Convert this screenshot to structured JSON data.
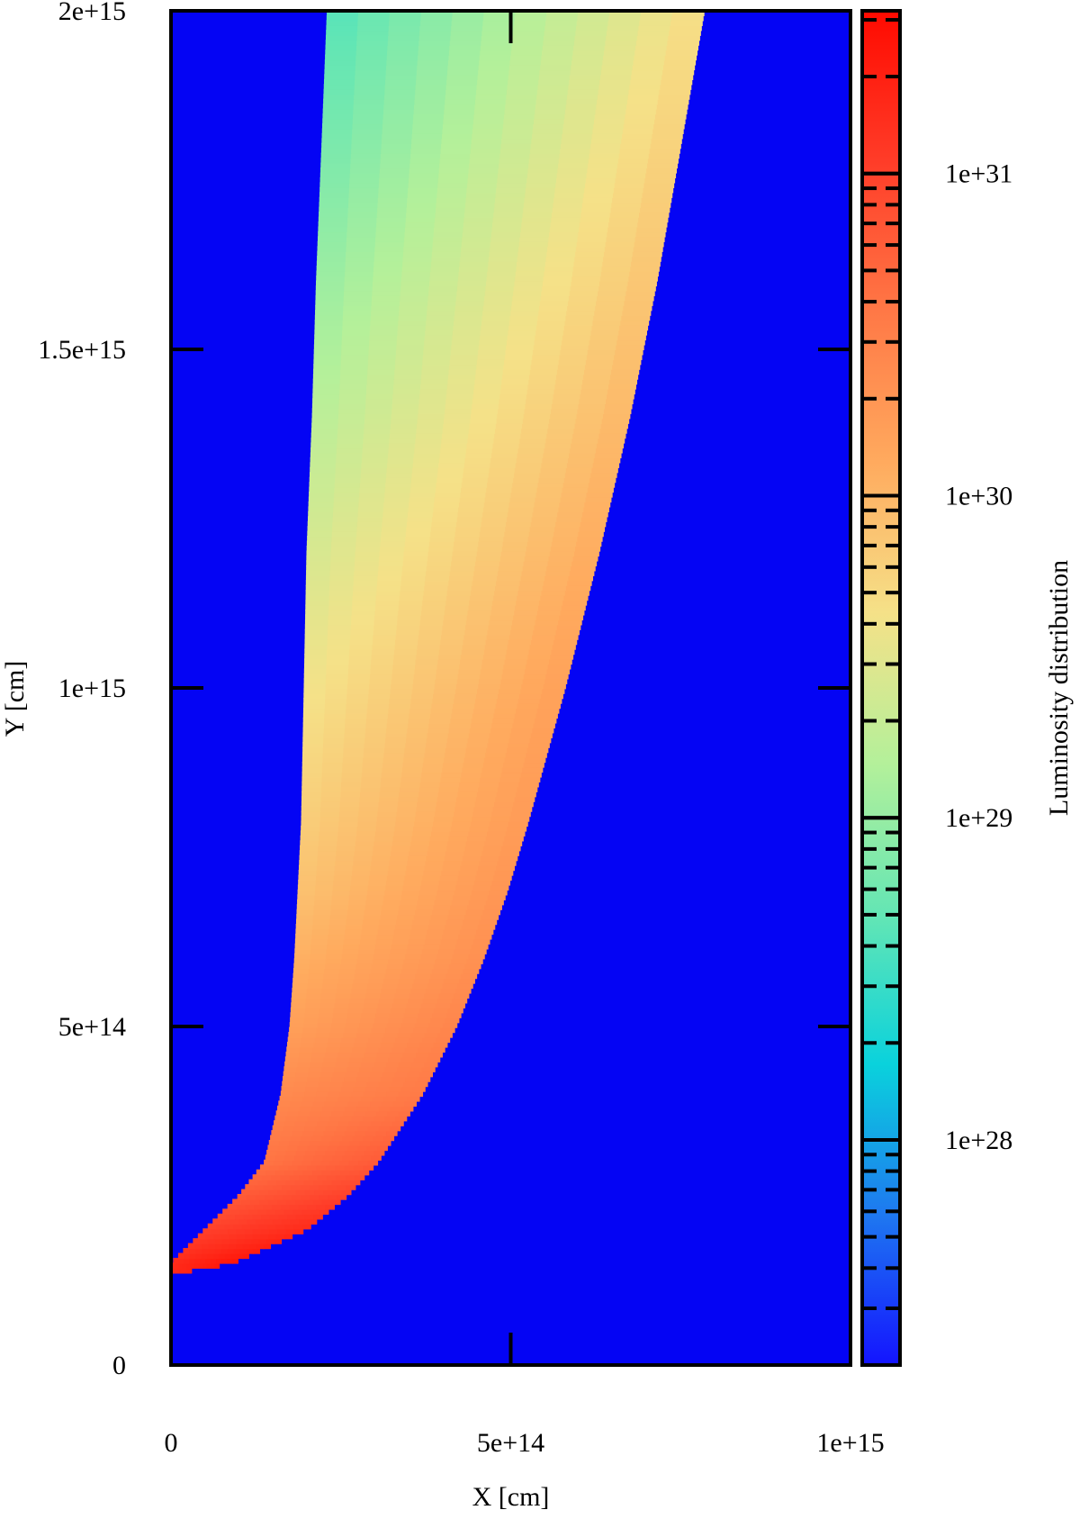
{
  "chart_data": {
    "type": "heatmap",
    "title": "",
    "xlabel": "X [cm]",
    "ylabel": "Y [cm]",
    "xlim": [
      0,
      1000000000000000.0
    ],
    "ylim": [
      0,
      2000000000000000.0
    ],
    "x_ticks": [
      0,
      500000000000000.0,
      1000000000000000.0
    ],
    "x_tick_labels": [
      "0",
      "5e+14",
      "1e+15"
    ],
    "y_ticks": [
      0,
      500000000000000.0,
      1000000000000000.0,
      1500000000000000.0,
      2000000000000000.0
    ],
    "y_tick_labels": [
      "0",
      "5e+14",
      "1e+15",
      "1.5e+15",
      "2e+15"
    ],
    "colorbar": {
      "label": "Luminosity distribution",
      "scale": "log",
      "range": [
        2e+27,
        3.2e+31
      ],
      "major_ticks": [
        1e+28,
        1e+29,
        1e+30,
        1e+31
      ],
      "major_tick_labels": [
        "1e+28",
        "1e+29",
        "1e+30",
        "1e+31"
      ],
      "colormap": [
        "#1414ff",
        "#1e78f0",
        "#0ad2dc",
        "#64e6b4",
        "#b4f09a",
        "#f5e188",
        "#ffaa5e",
        "#ff7846",
        "#ff3c28",
        "#ff0a00"
      ]
    },
    "background_color": "#0404f4",
    "region": {
      "description_points_y": [
        134000000000000.0,
        150000000000000.0,
        200000000000000.0,
        250000000000000.0,
        300000000000000.0,
        400000000000000.0,
        500000000000000.0,
        600000000000000.0,
        700000000000000.0,
        800000000000000.0,
        1000000000000000.0,
        1200000000000000.0,
        1400000000000000.0,
        1600000000000000.0,
        1800000000000000.0,
        2000000000000000.0
      ],
      "inner_edge_x": [
        0,
        0,
        50000000000000.0,
        100000000000000.0,
        138000000000000.0,
        162000000000000.0,
        175000000000000.0,
        182000000000000.0,
        187000000000000.0,
        192000000000000.0,
        196000000000000.0,
        200000000000000.0,
        208000000000000.0,
        214000000000000.0,
        222000000000000.0,
        230000000000000.0
      ],
      "outer_edge_x": [
        0,
        90000000000000.0,
        200000000000000.0,
        260000000000000.0,
        305000000000000.0,
        370000000000000.0,
        420000000000000.0,
        460000000000000.0,
        495000000000000.0,
        525000000000000.0,
        580000000000000.0,
        630000000000000.0,
        675000000000000.0,
        715000000000000.0,
        750000000000000.0,
        785000000000000.0
      ],
      "log_luminosity_inner": [
        31.2,
        31.2,
        31.0,
        30.8,
        30.6,
        30.4,
        30.2,
        30.05,
        29.9,
        29.8,
        29.6,
        29.4,
        29.2,
        29.0,
        28.8,
        28.6
      ],
      "log_luminosity_outer": [
        31.2,
        31.4,
        31.2,
        31.0,
        30.8,
        30.55,
        30.45,
        30.35,
        30.3,
        30.25,
        30.2,
        30.1,
        30.0,
        29.9,
        29.8,
        29.7
      ]
    }
  }
}
